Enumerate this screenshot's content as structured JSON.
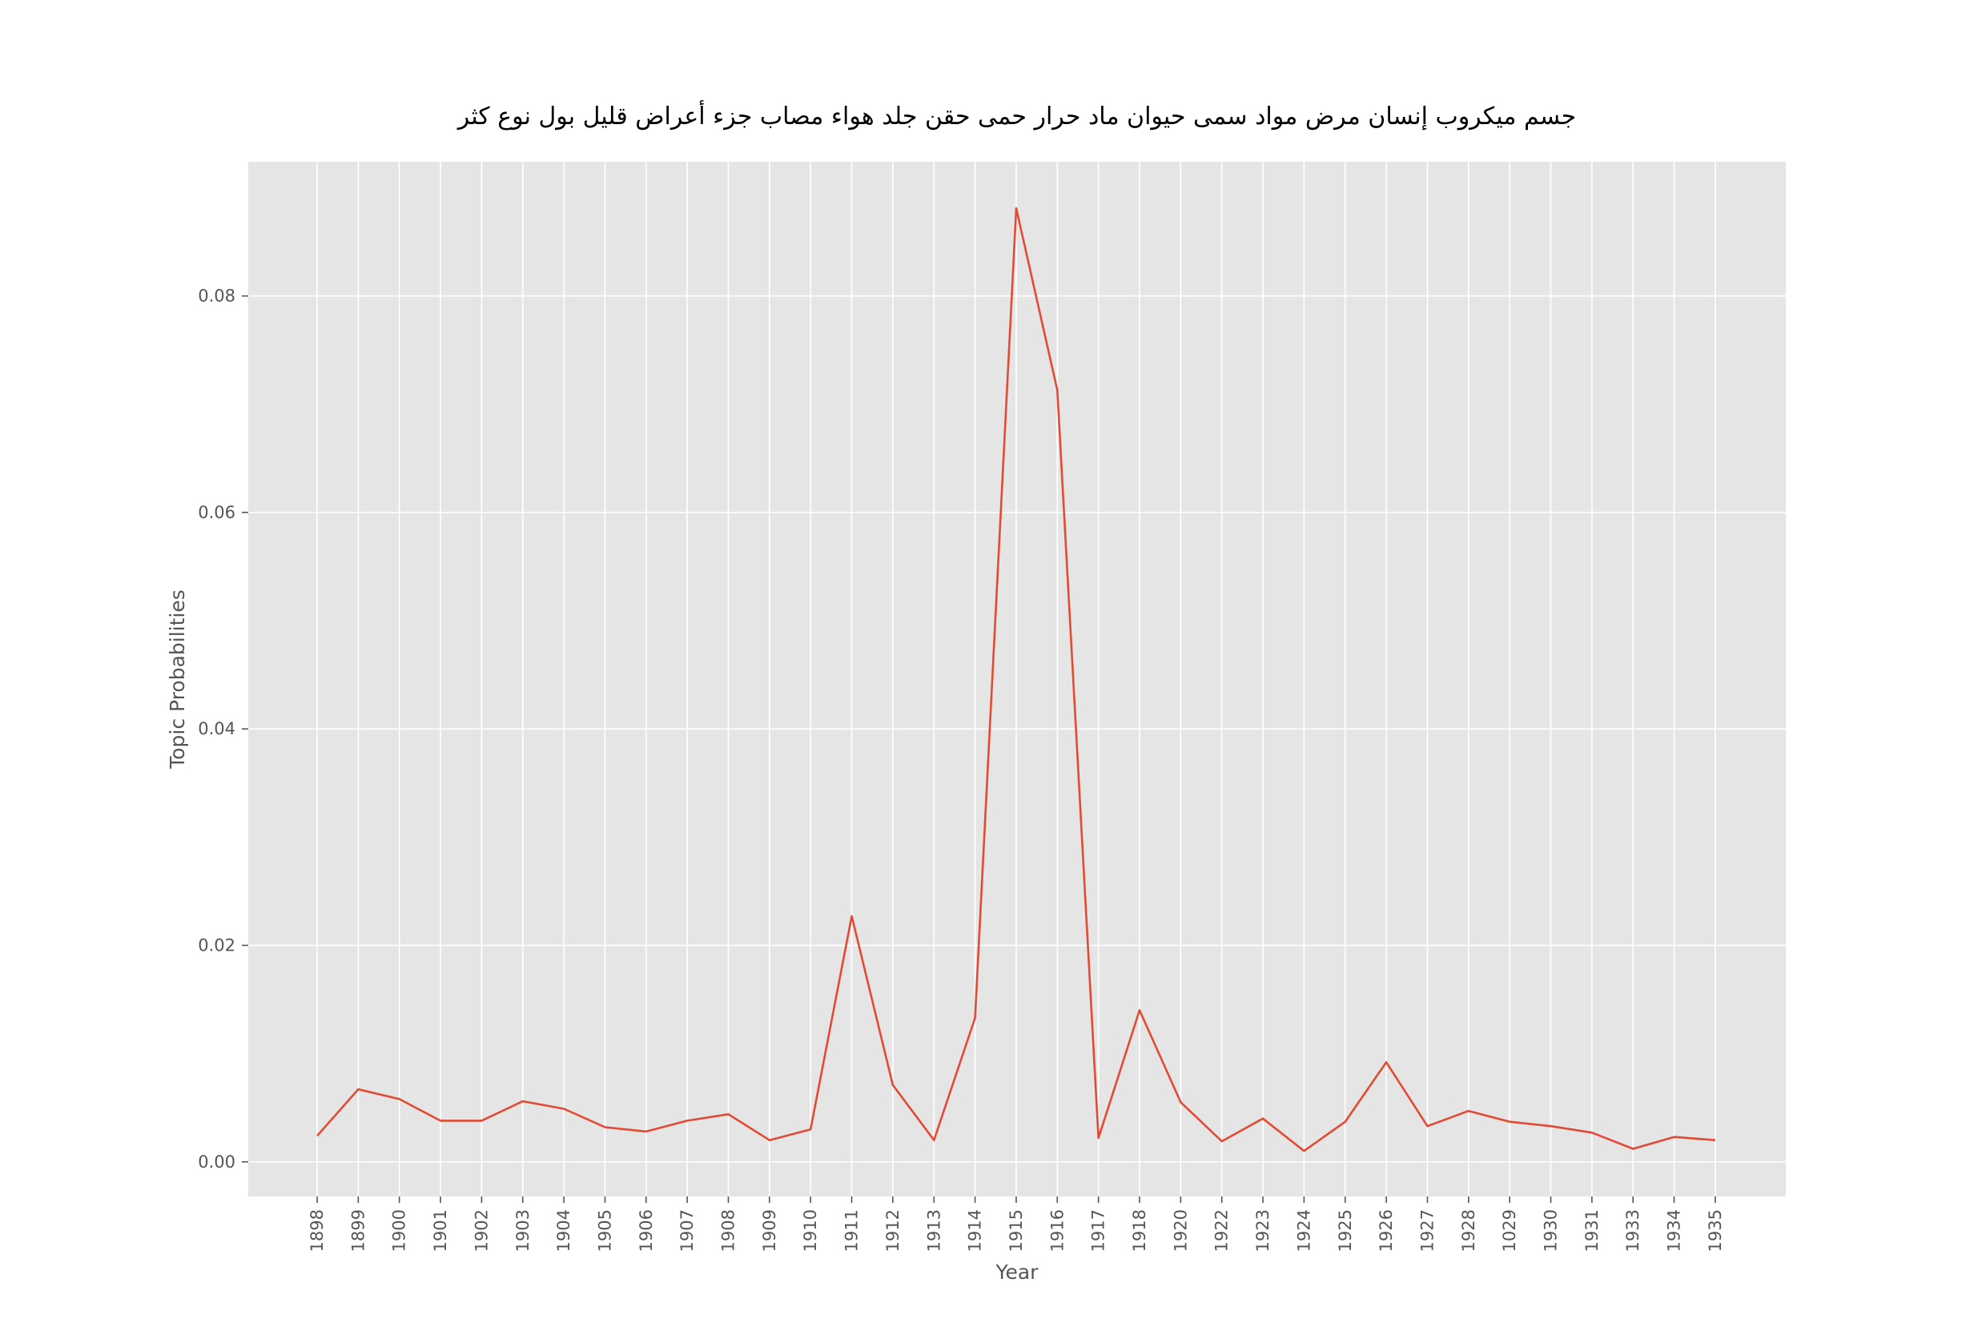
{
  "chart_data": {
    "type": "line",
    "title": "جسم ميكروب إنسان مرض مواد سمى حيوان ماد حرار حمى حقن جلد هواء مصاب جزء أعراض قليل بول نوع كثر",
    "xlabel": "Year",
    "ylabel": "Topic Probabilities",
    "categories": [
      "1898",
      "1899",
      "1900",
      "1901",
      "1902",
      "1903",
      "1904",
      "1905",
      "1906",
      "1907",
      "1908",
      "1909",
      "1910",
      "1911",
      "1912",
      "1913",
      "1914",
      "1915",
      "1916",
      "1917",
      "1918",
      "1920",
      "1922",
      "1923",
      "1924",
      "1925",
      "1926",
      "1927",
      "1928",
      "1029",
      "1930",
      "1931",
      "1933",
      "1934",
      "1935"
    ],
    "series": [
      {
        "values": [
          0.0024,
          0.0067,
          0.0058,
          0.0038,
          0.0038,
          0.0056,
          0.0049,
          0.0032,
          0.0028,
          0.0038,
          0.0044,
          0.002,
          0.003,
          0.0227,
          0.0071,
          0.002,
          0.0133,
          0.0881,
          0.0713,
          0.0022,
          0.014,
          0.0055,
          0.0019,
          0.004,
          0.001,
          0.0037,
          0.0092,
          0.0033,
          0.0047,
          0.0037,
          0.0033,
          0.0027,
          0.0012,
          0.0023,
          0.002
        ],
        "color": "#e24a33"
      }
    ],
    "ylim": [
      -0.0032,
      0.0924
    ],
    "yticks": [
      "0.00",
      "0.02",
      "0.04",
      "0.06",
      "0.08"
    ],
    "grid": true,
    "style": "ggplot",
    "background_color": "#e5e5e5",
    "grid_color": "#ffffff"
  }
}
